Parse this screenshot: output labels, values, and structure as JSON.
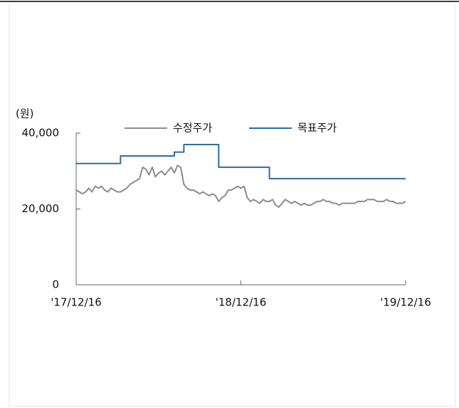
{
  "chart_data": {
    "type": "line",
    "y_label": "(원)",
    "categories": [
      "'17/12/16",
      null,
      null,
      null,
      null,
      null,
      null,
      null,
      null,
      null,
      null,
      null,
      null,
      null,
      null,
      null,
      null,
      null,
      null,
      null,
      null,
      null,
      null,
      null,
      null,
      null,
      null,
      null,
      null,
      null,
      null,
      null,
      null,
      null,
      null,
      null,
      null,
      null,
      null,
      null,
      null,
      null,
      null,
      null,
      null,
      null,
      null,
      null,
      null,
      null,
      null,
      null,
      "'18/12/16",
      null,
      null,
      null,
      null,
      null,
      null,
      null,
      null,
      null,
      null,
      null,
      null,
      null,
      null,
      null,
      null,
      null,
      null,
      null,
      null,
      null,
      null,
      null,
      null,
      null,
      null,
      null,
      null,
      null,
      null,
      null,
      null,
      null,
      null,
      null,
      null,
      null,
      null,
      null,
      null,
      null,
      null,
      null,
      null,
      null,
      null,
      null,
      null,
      null,
      null,
      null,
      "'19/12/16"
    ],
    "series": [
      {
        "name": "수정주가",
        "color": "#8c8c8c",
        "step": false,
        "values": [
          25000,
          24500,
          24000,
          24500,
          25500,
          24500,
          26000,
          25500,
          26000,
          25000,
          24500,
          25500,
          25000,
          24500,
          24500,
          25000,
          25500,
          26500,
          27000,
          27500,
          28000,
          31000,
          30500,
          29000,
          31000,
          28500,
          29500,
          30000,
          29000,
          30000,
          31000,
          29500,
          31500,
          31000,
          26500,
          25500,
          25000,
          25000,
          24500,
          24000,
          24500,
          24000,
          23500,
          24000,
          23500,
          22000,
          23000,
          23500,
          25000,
          25000,
          25500,
          26000,
          25500,
          26000,
          23000,
          22000,
          22500,
          22000,
          21500,
          22500,
          22000,
          22000,
          22500,
          21000,
          20500,
          21500,
          22500,
          22000,
          21500,
          22000,
          21500,
          21000,
          21500,
          21000,
          21000,
          21500,
          22000,
          22000,
          22500,
          22000,
          22000,
          21500,
          21500,
          21000,
          21500,
          21500,
          21500,
          21500,
          21500,
          22000,
          22000,
          22000,
          22500,
          22500,
          22500,
          22000,
          22000,
          22000,
          22500,
          22000,
          22000,
          21500,
          21500,
          21500,
          22000
        ]
      },
      {
        "name": "목표주가",
        "color": "#2e6ca4",
        "step": true,
        "values": [
          32000,
          32000,
          32000,
          32000,
          32000,
          32000,
          32000,
          32000,
          32000,
          32000,
          32000,
          32000,
          32000,
          32000,
          34000,
          34000,
          34000,
          34000,
          34000,
          34000,
          34000,
          34000,
          34000,
          34000,
          34000,
          34000,
          34000,
          34000,
          34000,
          34000,
          34000,
          35000,
          35000,
          35000,
          37000,
          37000,
          37000,
          37000,
          37000,
          37000,
          37000,
          37000,
          37000,
          37000,
          37000,
          31000,
          31000,
          31000,
          31000,
          31000,
          31000,
          31000,
          31000,
          31000,
          31000,
          31000,
          31000,
          31000,
          31000,
          31000,
          31000,
          28000,
          28000,
          28000,
          28000,
          28000,
          28000,
          28000,
          28000,
          28000,
          28000,
          28000,
          28000,
          28000,
          28000,
          28000,
          28000,
          28000,
          28000,
          28000,
          28000,
          28000,
          28000,
          28000,
          28000,
          28000,
          28000,
          28000,
          28000,
          28000,
          28000,
          28000,
          28000,
          28000,
          28000,
          28000,
          28000,
          28000,
          28000,
          28000,
          28000,
          28000,
          28000,
          28000,
          28000
        ]
      }
    ],
    "ylim": [
      0,
      40000
    ],
    "yticks": [
      0,
      {
        "value": 20000,
        "label": "20,000"
      },
      {
        "value": 40000,
        "label": "40,000"
      }
    ],
    "grid": false,
    "legend": "top"
  }
}
